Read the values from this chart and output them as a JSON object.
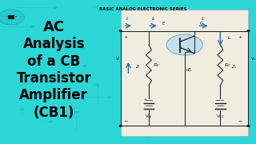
{
  "bg_color": "#2dd6d6",
  "title_top": "BASIC ANALOG ELECTRONIC SERIES",
  "title_main_lines": [
    "AC",
    "Analysis",
    "of a CB",
    "Transistor",
    "Amplifier",
    "(CB1)"
  ],
  "title_color": "#000000",
  "subtitle_color": "#111111",
  "circuit_bg": "#f0ece0",
  "trace_color": "#1ab8b8",
  "line_color": "#222222",
  "arrow_color": "#1a6aaa",
  "transistor_fill": "#b8dcf0",
  "transistor_edge": "#6699bb"
}
